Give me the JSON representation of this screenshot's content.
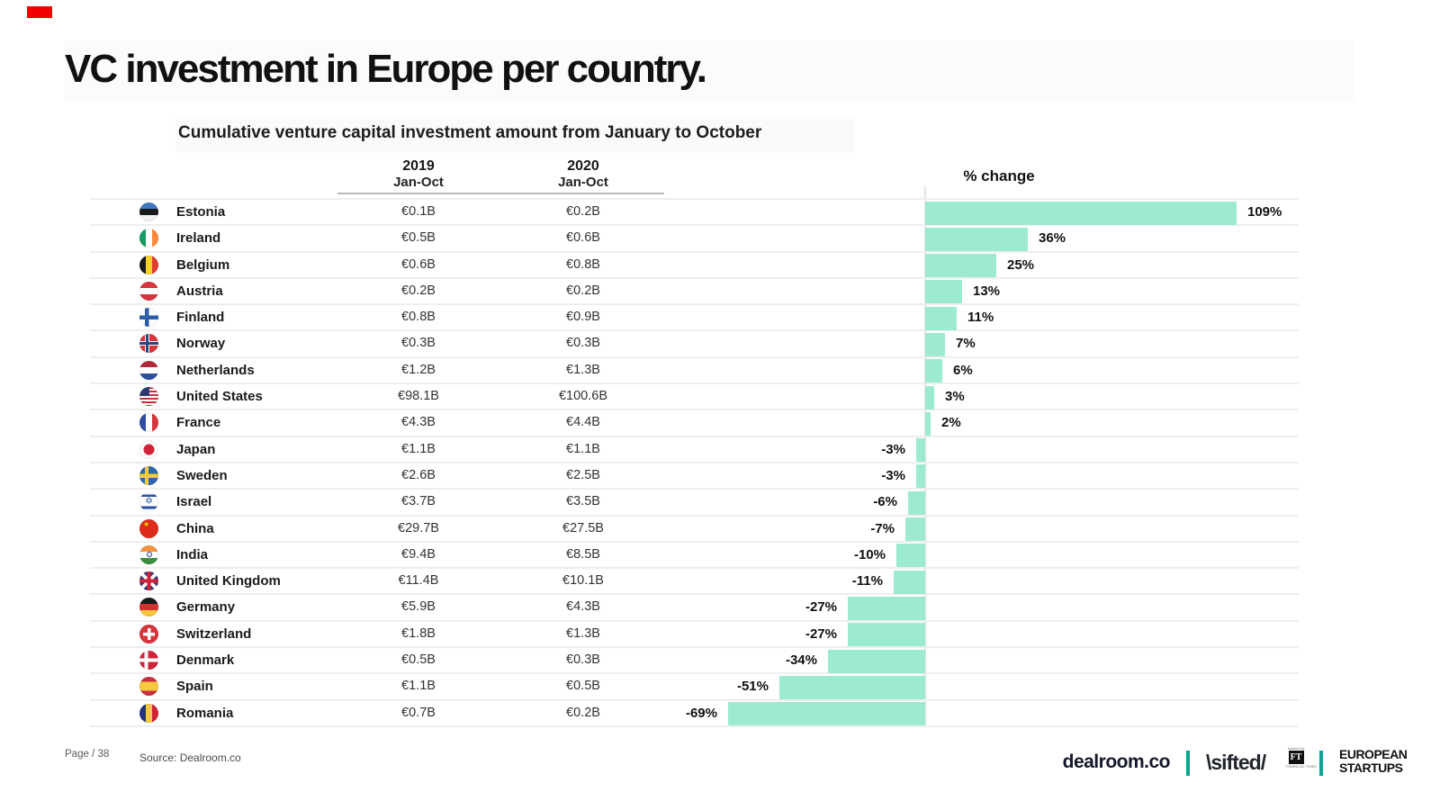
{
  "page": {
    "title": "VC investment in Europe per country.",
    "subtitle": "Cumulative venture capital investment amount from January to October"
  },
  "table": {
    "col_2019_year": "2019",
    "col_2019_range": "Jan-Oct",
    "col_2020_year": "2020",
    "col_2020_range": "Jan-Oct",
    "pct_header": "% change"
  },
  "rows": [
    {
      "country": "Estonia",
      "flag": "estonia",
      "v2019": "€0.1B",
      "v2020": "€0.2B",
      "change": 109,
      "change_label": "109%"
    },
    {
      "country": "Ireland",
      "flag": "ireland",
      "v2019": "€0.5B",
      "v2020": "€0.6B",
      "change": 36,
      "change_label": "36%"
    },
    {
      "country": "Belgium",
      "flag": "belgium",
      "v2019": "€0.6B",
      "v2020": "€0.8B",
      "change": 25,
      "change_label": "25%"
    },
    {
      "country": "Austria",
      "flag": "austria",
      "v2019": "€0.2B",
      "v2020": "€0.2B",
      "change": 13,
      "change_label": "13%"
    },
    {
      "country": "Finland",
      "flag": "finland",
      "v2019": "€0.8B",
      "v2020": "€0.9B",
      "change": 11,
      "change_label": "11%"
    },
    {
      "country": "Norway",
      "flag": "norway",
      "v2019": "€0.3B",
      "v2020": "€0.3B",
      "change": 7,
      "change_label": "7%"
    },
    {
      "country": "Netherlands",
      "flag": "netherlands",
      "v2019": "€1.2B",
      "v2020": "€1.3B",
      "change": 6,
      "change_label": "6%"
    },
    {
      "country": "United States",
      "flag": "usa",
      "v2019": "€98.1B",
      "v2020": "€100.6B",
      "change": 3,
      "change_label": "3%"
    },
    {
      "country": "France",
      "flag": "france",
      "v2019": "€4.3B",
      "v2020": "€4.4B",
      "change": 2,
      "change_label": "2%"
    },
    {
      "country": "Japan",
      "flag": "japan",
      "v2019": "€1.1B",
      "v2020": "€1.1B",
      "change": -3,
      "change_label": "-3%"
    },
    {
      "country": "Sweden",
      "flag": "sweden",
      "v2019": "€2.6B",
      "v2020": "€2.5B",
      "change": -3,
      "change_label": "-3%"
    },
    {
      "country": "Israel",
      "flag": "israel",
      "v2019": "€3.7B",
      "v2020": "€3.5B",
      "change": -6,
      "change_label": "-6%"
    },
    {
      "country": "China",
      "flag": "china",
      "v2019": "€29.7B",
      "v2020": "€27.5B",
      "change": -7,
      "change_label": "-7%"
    },
    {
      "country": "India",
      "flag": "india",
      "v2019": "€9.4B",
      "v2020": "€8.5B",
      "change": -10,
      "change_label": "-10%"
    },
    {
      "country": "United Kingdom",
      "flag": "uk",
      "v2019": "€11.4B",
      "v2020": "€10.1B",
      "change": -11,
      "change_label": "-11%"
    },
    {
      "country": "Germany",
      "flag": "germany",
      "v2019": "€5.9B",
      "v2020": "€4.3B",
      "change": -27,
      "change_label": "-27%"
    },
    {
      "country": "Switzerland",
      "flag": "switzerland",
      "v2019": "€1.8B",
      "v2020": "€1.3B",
      "change": -27,
      "change_label": "-27%"
    },
    {
      "country": "Denmark",
      "flag": "denmark",
      "v2019": "€0.5B",
      "v2020": "€0.3B",
      "change": -34,
      "change_label": "-34%"
    },
    {
      "country": "Spain",
      "flag": "spain",
      "v2019": "€1.1B",
      "v2020": "€0.5B",
      "change": -51,
      "change_label": "-51%"
    },
    {
      "country": "Romania",
      "flag": "romania",
      "v2019": "€0.7B",
      "v2020": "€0.2B",
      "change": -69,
      "change_label": "-69%"
    }
  ],
  "chart_data": {
    "type": "bar",
    "orientation": "horizontal",
    "title": "% change",
    "subtitle": "Cumulative venture capital investment amount from January to October",
    "categories": [
      "Estonia",
      "Ireland",
      "Belgium",
      "Austria",
      "Finland",
      "Norway",
      "Netherlands",
      "United States",
      "France",
      "Japan",
      "Sweden",
      "Israel",
      "China",
      "India",
      "United Kingdom",
      "Germany",
      "Switzerland",
      "Denmark",
      "Spain",
      "Romania"
    ],
    "series": [
      {
        "name": "2019 Jan-Oct (€B)",
        "values": [
          0.1,
          0.5,
          0.6,
          0.2,
          0.8,
          0.3,
          1.2,
          98.1,
          4.3,
          1.1,
          2.6,
          3.7,
          29.7,
          9.4,
          11.4,
          5.9,
          1.8,
          0.5,
          1.1,
          0.7
        ]
      },
      {
        "name": "2020 Jan-Oct (€B)",
        "values": [
          0.2,
          0.6,
          0.8,
          0.2,
          0.9,
          0.3,
          1.3,
          100.6,
          4.4,
          1.1,
          2.5,
          3.5,
          27.5,
          8.5,
          10.1,
          4.3,
          1.3,
          0.3,
          0.5,
          0.2
        ]
      },
      {
        "name": "% change",
        "values": [
          109,
          36,
          25,
          13,
          11,
          7,
          6,
          3,
          2,
          -3,
          -3,
          -6,
          -7,
          -10,
          -11,
          -27,
          -27,
          -34,
          -51,
          -69
        ]
      }
    ],
    "bar_color": "#9cead2",
    "xlim": [
      -69,
      109
    ],
    "grid": false,
    "value_labels": true,
    "legend_position": "none"
  },
  "footer": {
    "page_label": "Page / 38",
    "source": "Source: Dealroom.co",
    "logo_dealroom": "dealroom.co",
    "logo_sifted": "\\sifted/",
    "ft_backed_by": "backed by",
    "ft_initials": "FT",
    "ft_name": "FINANCIAL TIMES",
    "logo_european_line1": "EUROPEAN",
    "logo_european_line2": "STARTUPS"
  },
  "colors": {
    "bar": "#9cead2",
    "teal_divider": "#0ba58e",
    "separator": "#efeeee"
  }
}
